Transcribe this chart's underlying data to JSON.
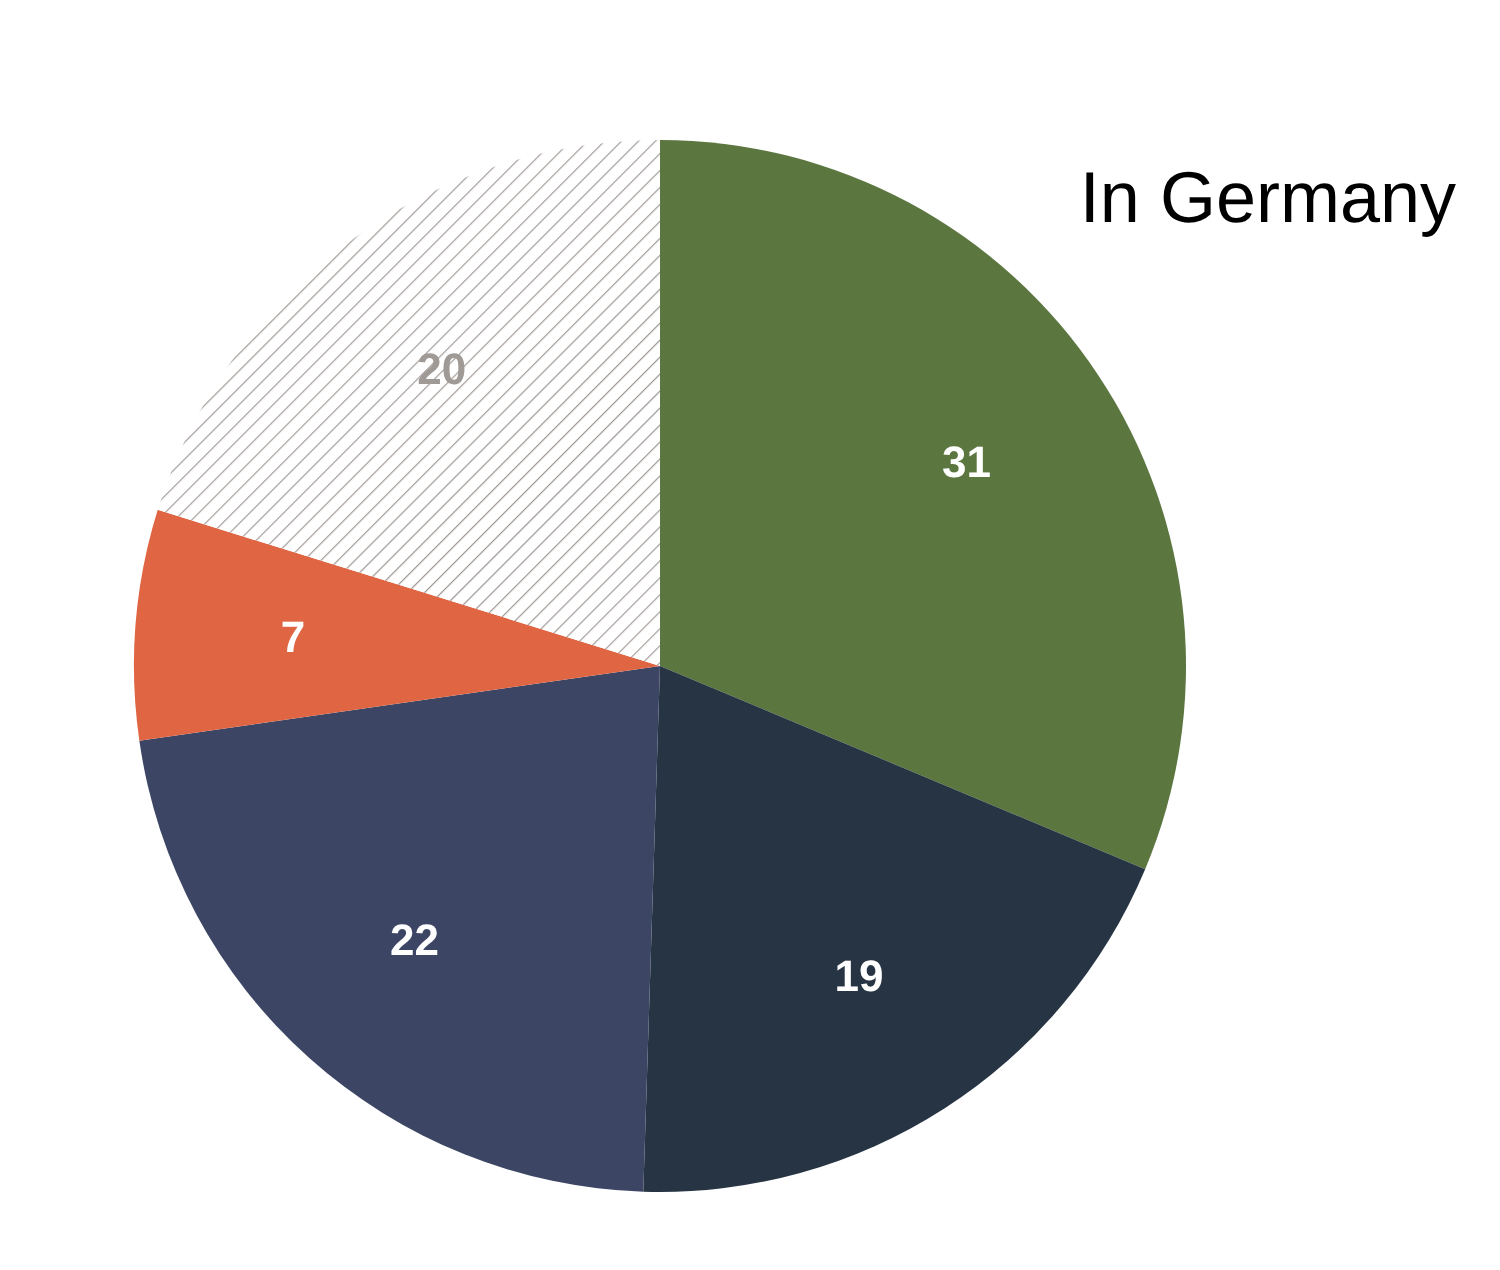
{
  "chart_data": {
    "type": "pie",
    "title": "In Germany",
    "categories": [
      null,
      null,
      null,
      null,
      null
    ],
    "values": [
      31,
      19,
      22,
      7,
      20
    ],
    "colors": [
      "#5c7640",
      "#263443",
      "#3c4664",
      "#e06543",
      "#a09a96"
    ],
    "data_labels": true,
    "legend": false
  }
}
